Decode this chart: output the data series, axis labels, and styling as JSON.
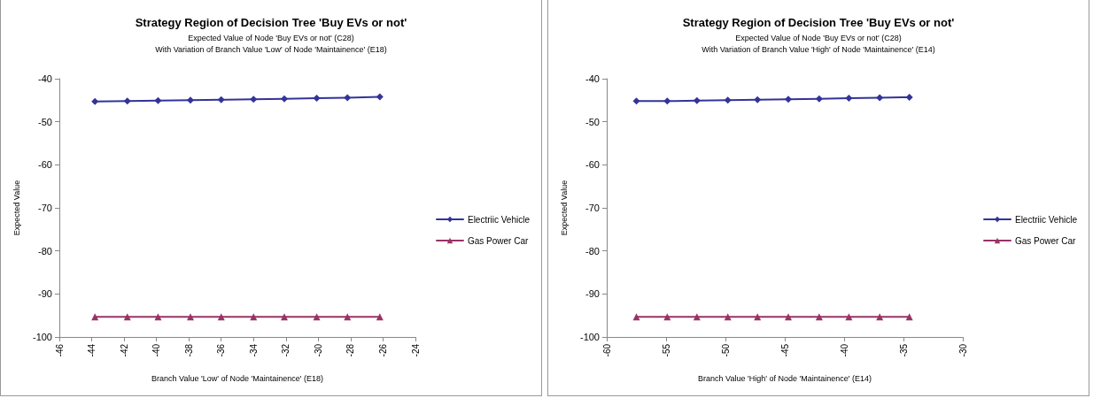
{
  "chart_data": [
    {
      "type": "line",
      "title": "Strategy Region of Decision Tree 'Buy EVs or not'",
      "subtitle": "Expected Value of Node 'Buy EVs or not' (C28)\nWith Variation of Branch Value 'Low' of Node 'Maintainence' (E18)",
      "xlabel": "Branch Value 'Low' of Node 'Maintainence' (E18)",
      "ylabel": "Expected Value",
      "x": [
        -43.8,
        -41.8,
        -39.9,
        -37.9,
        -36.0,
        -34.0,
        -32.1,
        -30.1,
        -28.2,
        -26.2
      ],
      "series": [
        {
          "name": "Electriic Vehicle",
          "color": "#333399",
          "marker": "diamond",
          "values": [
            -45.3,
            -45.2,
            -45.1,
            -45.0,
            -44.9,
            -44.8,
            -44.7,
            -44.5,
            -44.4,
            -44.2
          ]
        },
        {
          "name": "Gas Power Car",
          "color": "#993366",
          "marker": "triangle",
          "values": [
            -95.3,
            -95.3,
            -95.3,
            -95.3,
            -95.3,
            -95.3,
            -95.3,
            -95.3,
            -95.3,
            -95.3
          ]
        }
      ],
      "xlim": [
        -46,
        -24
      ],
      "xticks": [
        -46,
        -44,
        -42,
        -40,
        -38,
        -36,
        -34,
        -32,
        -30,
        -28,
        -26,
        -24
      ],
      "ylim": [
        -100,
        -40
      ],
      "yticks": [
        -100,
        -90,
        -80,
        -70,
        -60,
        -50,
        -40
      ],
      "grid": false,
      "legend": "right"
    },
    {
      "type": "line",
      "title": "Strategy Region of Decision Tree 'Buy EVs or not'",
      "subtitle": "Expected Value of Node 'Buy EVs or not' (C28)\nWith Variation of Branch Value 'High' of Node 'Maintainence' (E14)",
      "xlabel": "Branch Value 'High' of Node 'Maintainence' (E14)",
      "ylabel": "Expected Value",
      "x": [
        -57.5,
        -54.9,
        -52.4,
        -49.8,
        -47.3,
        -44.7,
        -42.1,
        -39.6,
        -37.0,
        -34.5
      ],
      "series": [
        {
          "name": "Electriic Vehicle",
          "color": "#333399",
          "marker": "diamond",
          "values": [
            -45.2,
            -45.2,
            -45.1,
            -45.0,
            -44.9,
            -44.8,
            -44.7,
            -44.5,
            -44.4,
            -44.3
          ]
        },
        {
          "name": "Gas Power Car",
          "color": "#993366",
          "marker": "triangle",
          "values": [
            -95.3,
            -95.3,
            -95.3,
            -95.3,
            -95.3,
            -95.3,
            -95.3,
            -95.3,
            -95.3,
            -95.3
          ]
        }
      ],
      "xlim": [
        -60,
        -30
      ],
      "xticks": [
        -60,
        -55,
        -50,
        -45,
        -40,
        -35,
        -30
      ],
      "ylim": [
        -100,
        -40
      ],
      "yticks": [
        -100,
        -90,
        -80,
        -70,
        -60,
        -50,
        -40
      ],
      "grid": false,
      "legend": "right"
    }
  ]
}
